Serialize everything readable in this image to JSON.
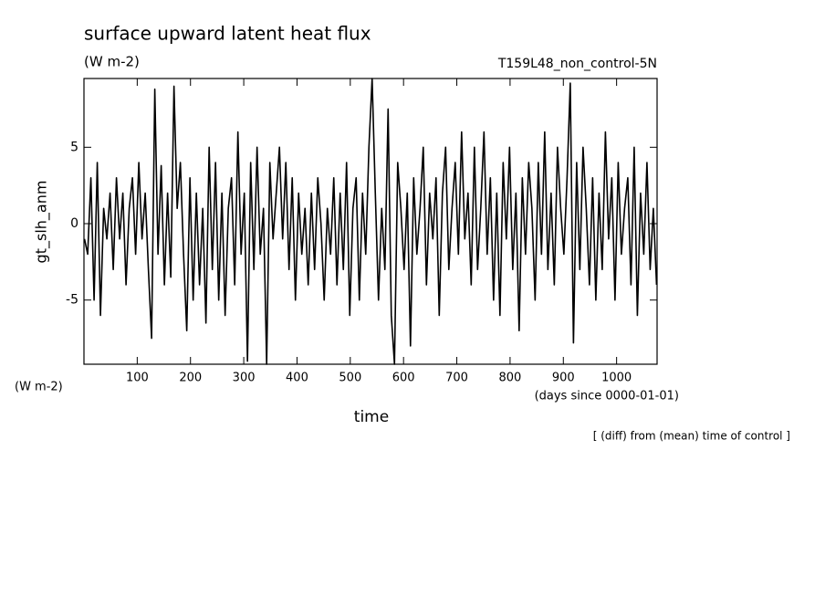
{
  "chart_data": {
    "type": "line",
    "title": "surface upward latent heat flux",
    "subtitle": "(W m-2)",
    "annotation": "T159L48_non_control-5N",
    "ylabel": "gt_slh_anm",
    "yunit": "(W m-2)",
    "xlabel": "time",
    "xunit": "(days since 0000-01-01)",
    "note": "[ (diff) from (mean) time of control ]",
    "xlim": [
      0,
      1076
    ],
    "ylim": [
      -9.2,
      9.5
    ],
    "xticks": [
      100,
      200,
      300,
      400,
      500,
      600,
      700,
      800,
      900,
      1000
    ],
    "yticks": [
      -5,
      0,
      5
    ],
    "series": [
      {
        "color": "#000000",
        "x": [
          1,
          7,
          13,
          19,
          25,
          31,
          37,
          43,
          49,
          55,
          61,
          67,
          73,
          79,
          85,
          91,
          97,
          103,
          109,
          115,
          121,
          127,
          133,
          139,
          145,
          151,
          157,
          163,
          169,
          175,
          181,
          187,
          193,
          199,
          205,
          211,
          217,
          223,
          229,
          235,
          241,
          247,
          253,
          259,
          265,
          271,
          277,
          283,
          289,
          295,
          301,
          307,
          313,
          319,
          325,
          331,
          337,
          343,
          349,
          355,
          361,
          367,
          373,
          379,
          385,
          391,
          397,
          403,
          409,
          415,
          421,
          427,
          433,
          439,
          445,
          451,
          457,
          463,
          469,
          475,
          481,
          487,
          493,
          499,
          505,
          511,
          517,
          523,
          529,
          535,
          541,
          547,
          553,
          559,
          565,
          571,
          577,
          583,
          589,
          595,
          601,
          607,
          613,
          619,
          625,
          631,
          637,
          643,
          649,
          655,
          661,
          667,
          673,
          679,
          685,
          691,
          697,
          703,
          709,
          715,
          721,
          727,
          733,
          739,
          745,
          751,
          757,
          763,
          769,
          775,
          781,
          787,
          793,
          799,
          805,
          811,
          817,
          823,
          829,
          835,
          841,
          847,
          853,
          859,
          865,
          871,
          877,
          883,
          889,
          895,
          901,
          907,
          913,
          919,
          925,
          931,
          937,
          943,
          949,
          955,
          961,
          967,
          973,
          979,
          985,
          991,
          997,
          1003,
          1009,
          1015,
          1021,
          1027,
          1033,
          1039,
          1045,
          1051,
          1057,
          1063,
          1069,
          1075
        ],
        "values": [
          -1,
          -2,
          3,
          -5,
          4,
          -6,
          1,
          -1,
          2,
          -3,
          3,
          -1,
          2,
          -4,
          1,
          3,
          -2,
          4,
          -1,
          2,
          -3,
          -7.5,
          8.8,
          -2,
          3.8,
          -4,
          2,
          -3.5,
          9,
          1,
          4,
          -2,
          -7,
          3,
          -5,
          2,
          -4,
          1,
          -6.5,
          5,
          -3,
          4,
          -5,
          2,
          -6,
          1,
          3,
          -4,
          6,
          -2,
          2,
          -9,
          4,
          -3,
          5,
          -2,
          1,
          -9.2,
          4,
          -1,
          2,
          5,
          -1,
          4,
          -3,
          3,
          -5,
          2,
          -2,
          1,
          -4,
          2,
          -3,
          3,
          0,
          -5,
          1,
          -2,
          3,
          -4,
          2,
          -3,
          4,
          -6,
          1,
          3,
          -5,
          2,
          -2,
          5,
          9.5,
          2,
          -5,
          1,
          -3,
          7.5,
          -6,
          -9.2,
          4,
          1,
          -3,
          2,
          -8,
          3,
          -2,
          1,
          5,
          -4,
          2,
          -1,
          3,
          -6,
          2,
          5,
          -3,
          1,
          4,
          -2,
          6,
          -1,
          2,
          -4,
          5,
          -3,
          1,
          6,
          -2,
          3,
          -5,
          2,
          -6,
          4,
          -1,
          5,
          -3,
          2,
          -7,
          3,
          -2,
          4,
          1,
          -5,
          4,
          -2,
          6,
          -3,
          2,
          -4,
          5,
          1,
          -2,
          3,
          9.2,
          -7.8,
          4,
          -3,
          5,
          1,
          -4,
          3,
          -5,
          2,
          -3,
          6,
          -1,
          3,
          -5,
          4,
          -2,
          1,
          3,
          -4,
          5,
          -6,
          2,
          -2,
          4,
          -3,
          1,
          -4
        ]
      }
    ]
  }
}
